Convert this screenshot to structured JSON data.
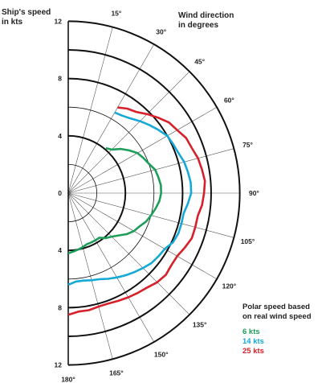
{
  "chart_data": {
    "type": "polar-line",
    "ylabel": "Ship's speed\nin kts",
    "angle_label": "Wind direction\nin degrees",
    "speed_ticks": [
      "12",
      "8",
      "4",
      "0",
      "4",
      "8",
      "12"
    ],
    "speed_range": [
      0,
      12
    ],
    "angle_ticks": [
      "15°",
      "30°",
      "45°",
      "60°",
      "75°",
      "90°",
      "105°",
      "120°",
      "135°",
      "150°",
      "165°",
      "180°"
    ],
    "angle_range": [
      0,
      180
    ],
    "grid": true,
    "legend_title": "Polar speed based\non real wind speed",
    "legend_position": "bottom-right",
    "series": [
      {
        "name": "6 kts",
        "color": "#1e9e5a",
        "points": [
          [
            40,
            4.1
          ],
          [
            45,
            4.3
          ],
          [
            50,
            4.8
          ],
          [
            55,
            5.2
          ],
          [
            60,
            5.6
          ],
          [
            65,
            5.8
          ],
          [
            70,
            6.0
          ],
          [
            75,
            6.3
          ],
          [
            80,
            6.4
          ],
          [
            85,
            6.5
          ],
          [
            90,
            6.5
          ],
          [
            95,
            6.4
          ],
          [
            100,
            6.2
          ],
          [
            105,
            6.0
          ],
          [
            110,
            5.8
          ],
          [
            115,
            5.5
          ],
          [
            120,
            5.3
          ],
          [
            125,
            5.0
          ],
          [
            130,
            4.6
          ],
          [
            135,
            4.3
          ],
          [
            140,
            4.1
          ],
          [
            145,
            3.8
          ],
          [
            150,
            3.8
          ],
          [
            155,
            3.8
          ],
          [
            160,
            3.8
          ],
          [
            165,
            3.9
          ],
          [
            170,
            4.0
          ],
          [
            175,
            4.1
          ],
          [
            180,
            4.2
          ]
        ]
      },
      {
        "name": "14 kts",
        "color": "#16a9d6",
        "points": [
          [
            30,
            6.5
          ],
          [
            35,
            6.6
          ],
          [
            40,
            6.8
          ],
          [
            45,
            7.1
          ],
          [
            50,
            7.4
          ],
          [
            55,
            7.7
          ],
          [
            60,
            8.0
          ],
          [
            65,
            8.1
          ],
          [
            70,
            8.2
          ],
          [
            75,
            8.4
          ],
          [
            80,
            8.5
          ],
          [
            85,
            8.6
          ],
          [
            90,
            8.6
          ],
          [
            95,
            8.4
          ],
          [
            100,
            8.2
          ],
          [
            105,
            8.2
          ],
          [
            110,
            8.2
          ],
          [
            115,
            8.1
          ],
          [
            120,
            7.8
          ],
          [
            125,
            7.7
          ],
          [
            130,
            7.6
          ],
          [
            135,
            7.4
          ],
          [
            140,
            7.2
          ],
          [
            145,
            7.0
          ],
          [
            150,
            6.8
          ],
          [
            155,
            6.6
          ],
          [
            160,
            6.4
          ],
          [
            165,
            6.3
          ],
          [
            170,
            6.2
          ],
          [
            175,
            6.2
          ],
          [
            180,
            6.4
          ]
        ]
      },
      {
        "name": "25 kts",
        "color": "#d6202a",
        "points": [
          [
            30,
            6.9
          ],
          [
            35,
            7.2
          ],
          [
            40,
            7.4
          ],
          [
            45,
            7.8
          ],
          [
            50,
            8.2
          ],
          [
            55,
            8.6
          ],
          [
            60,
            8.8
          ],
          [
            65,
            9.1
          ],
          [
            70,
            9.2
          ],
          [
            75,
            9.4
          ],
          [
            80,
            9.5
          ],
          [
            85,
            9.6
          ],
          [
            90,
            9.5
          ],
          [
            95,
            9.4
          ],
          [
            100,
            9.2
          ],
          [
            105,
            9.2
          ],
          [
            110,
            9.2
          ],
          [
            115,
            9.0
          ],
          [
            120,
            8.8
          ],
          [
            125,
            8.8
          ],
          [
            130,
            8.9
          ],
          [
            135,
            8.8
          ],
          [
            140,
            8.6
          ],
          [
            145,
            8.5
          ],
          [
            150,
            8.4
          ],
          [
            155,
            8.3
          ],
          [
            160,
            8.2
          ],
          [
            165,
            8.2
          ],
          [
            170,
            8.3
          ],
          [
            175,
            8.3
          ],
          [
            180,
            8.5
          ]
        ]
      }
    ]
  }
}
